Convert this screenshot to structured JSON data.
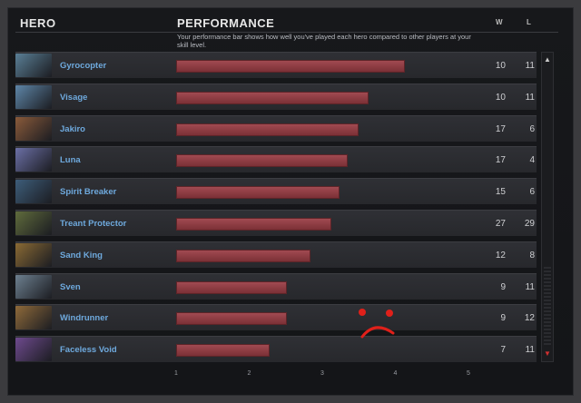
{
  "header": {
    "hero": "HERO",
    "performance": "PERFORMANCE",
    "w": "W",
    "l": "L",
    "description": "Your performance bar shows how well you've played each hero compared to other players at your skill level."
  },
  "heroes": [
    {
      "name": "Gyrocopter",
      "performance": 4.13,
      "w": "10",
      "l": "11",
      "portrait": "#5a7f96"
    },
    {
      "name": "Visage",
      "performance": 3.63,
      "w": "10",
      "l": "11",
      "portrait": "#5e86a8"
    },
    {
      "name": "Jakiro",
      "performance": 3.5,
      "w": "17",
      "l": "6",
      "portrait": "#8a5a3a"
    },
    {
      "name": "Luna",
      "performance": 3.35,
      "w": "17",
      "l": "4",
      "portrait": "#6b6fa6"
    },
    {
      "name": "Spirit Breaker",
      "performance": 3.23,
      "w": "15",
      "l": "6",
      "portrait": "#3d5d7a"
    },
    {
      "name": "Treant Protector",
      "performance": 3.13,
      "w": "27",
      "l": "29",
      "portrait": "#5f6b3c"
    },
    {
      "name": "Sand King",
      "performance": 2.84,
      "w": "12",
      "l": "8",
      "portrait": "#8a6a34"
    },
    {
      "name": "Sven",
      "performance": 2.52,
      "w": "9",
      "l": "11",
      "portrait": "#6d8090"
    },
    {
      "name": "Windrunner",
      "performance": 2.51,
      "w": "9",
      "l": "12",
      "portrait": "#8f6a3a"
    },
    {
      "name": "Faceless Void",
      "performance": 2.28,
      "w": "7",
      "l": "11",
      "portrait": "#6e4a8e"
    }
  ],
  "axis_ticks": [
    "1",
    "2",
    "3",
    "4",
    "5"
  ],
  "accent": "#6ea9dd",
  "bar_color": "#a14a51",
  "doodle_color": "#e0201a"
}
